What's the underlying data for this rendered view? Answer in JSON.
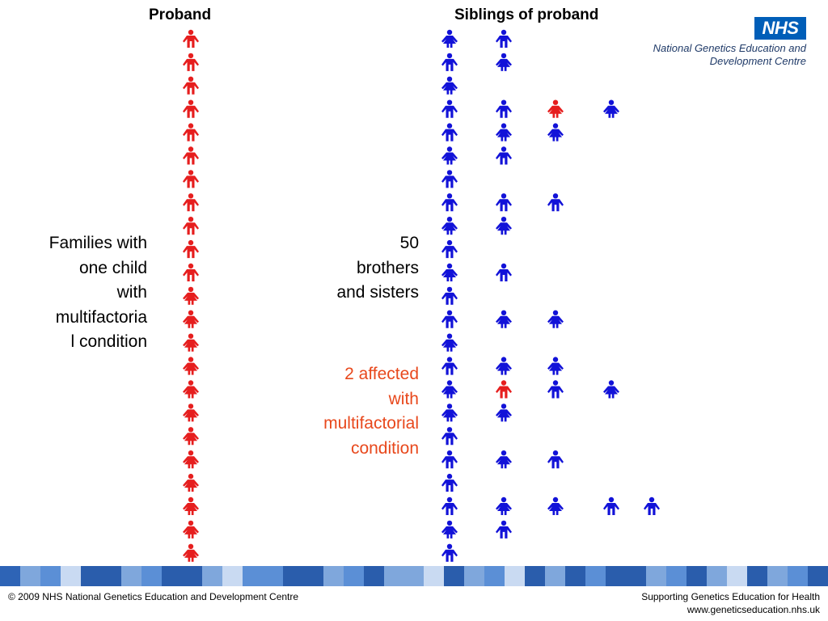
{
  "headers": {
    "proband": "Proband",
    "siblings": "Siblings of proband"
  },
  "logo": {
    "text": "NHS",
    "org_line1": "National Genetics Education and",
    "org_line2": "Development Centre"
  },
  "left_text": [
    "Families with",
    "one  child",
    "with",
    "multifactoria",
    "l condition"
  ],
  "sibling_count_text": [
    "50",
    "brothers",
    "and sisters"
  ],
  "affected_text": [
    "2 affected",
    "with",
    "multifactorial",
    "condition"
  ],
  "footer": {
    "left": "© 2009 NHS National Genetics Education and Development Centre",
    "right_line1": "Supporting Genetics Education for Health",
    "right_line2": "www.geneticseducation.nhs.uk"
  },
  "colors": {
    "affected": "#e61e1e",
    "unaffected": "#1212d8",
    "affected_text": "#e8481c"
  },
  "icons": {
    "male": "male-figure-icon",
    "female": "female-figure-icon"
  },
  "proband_column": [
    "M",
    "M",
    "M",
    "M",
    "M",
    "M",
    "M",
    "M",
    "M",
    "M",
    "M",
    "F",
    "F",
    "F",
    "F",
    "F",
    "F",
    "F",
    "F",
    "F",
    "F",
    "F",
    "F"
  ],
  "families": [
    [
      {
        "g": "F",
        "a": false
      },
      {
        "g": "M",
        "a": false
      }
    ],
    [
      {
        "g": "M",
        "a": false
      },
      {
        "g": "F",
        "a": false
      }
    ],
    [
      {
        "g": "F",
        "a": false
      }
    ],
    [
      {
        "g": "M",
        "a": false
      },
      {
        "g": "M",
        "a": false
      },
      {
        "g": "F",
        "a": true
      },
      {
        "g": "F",
        "a": false
      }
    ],
    [
      {
        "g": "M",
        "a": false
      },
      {
        "g": "F",
        "a": false
      },
      {
        "g": "F",
        "a": false
      }
    ],
    [
      {
        "g": "F",
        "a": false
      },
      {
        "g": "M",
        "a": false
      }
    ],
    [
      {
        "g": "M",
        "a": false
      }
    ],
    [
      {
        "g": "M",
        "a": false
      },
      {
        "g": "M",
        "a": false
      },
      {
        "g": "M",
        "a": false
      }
    ],
    [
      {
        "g": "F",
        "a": false
      },
      {
        "g": "F",
        "a": false
      }
    ],
    [
      {
        "g": "M",
        "a": false
      }
    ],
    [
      {
        "g": "F",
        "a": false
      },
      {
        "g": "M",
        "a": false
      }
    ],
    [
      {
        "g": "M",
        "a": false
      }
    ],
    [
      {
        "g": "M",
        "a": false
      },
      {
        "g": "F",
        "a": false
      },
      {
        "g": "F",
        "a": false
      }
    ],
    [
      {
        "g": "F",
        "a": false
      }
    ],
    [
      {
        "g": "M",
        "a": false
      },
      {
        "g": "F",
        "a": false
      },
      {
        "g": "F",
        "a": false
      }
    ],
    [
      {
        "g": "F",
        "a": false
      },
      {
        "g": "M",
        "a": true
      },
      {
        "g": "M",
        "a": false
      },
      {
        "g": "F",
        "a": false
      }
    ],
    [
      {
        "g": "F",
        "a": false
      },
      {
        "g": "F",
        "a": false
      }
    ],
    [
      {
        "g": "M",
        "a": false
      }
    ],
    [
      {
        "g": "M",
        "a": false
      },
      {
        "g": "F",
        "a": false
      },
      {
        "g": "M",
        "a": false
      }
    ],
    [
      {
        "g": "M",
        "a": false
      }
    ],
    [
      {
        "g": "M",
        "a": false
      },
      {
        "g": "F",
        "a": false
      },
      {
        "g": "F",
        "a": false
      },
      {
        "g": "M",
        "a": false
      },
      {
        "g": "M",
        "a": false
      }
    ],
    [
      {
        "g": "F",
        "a": false
      },
      {
        "g": "M",
        "a": false
      }
    ],
    [
      {
        "g": "M",
        "a": false
      }
    ]
  ],
  "band_colors": [
    "#2e64b6",
    "#7fa7dc",
    "#5b8fd6",
    "#c9daf2",
    "#2a5dac",
    "#2a5dac",
    "#7fa7dc",
    "#5b8fd6",
    "#2a5dac",
    "#2a5dac",
    "#7fa7dc",
    "#c9daf2",
    "#5b8fd6",
    "#5b8fd6",
    "#2a5dac",
    "#2a5dac",
    "#7fa7dc",
    "#5b8fd6",
    "#2a5dac",
    "#7fa7dc",
    "#7fa7dc",
    "#c9daf2",
    "#2a5dac",
    "#7fa7dc",
    "#5b8fd6",
    "#c9daf2",
    "#2a5dac",
    "#7fa7dc",
    "#2a5dac",
    "#5b8fd6",
    "#2a5dac",
    "#2a5dac",
    "#7fa7dc",
    "#5b8fd6",
    "#2a5dac",
    "#7fa7dc",
    "#c9daf2",
    "#2a5dac",
    "#7fa7dc",
    "#5b8fd6",
    "#2a5dac"
  ]
}
